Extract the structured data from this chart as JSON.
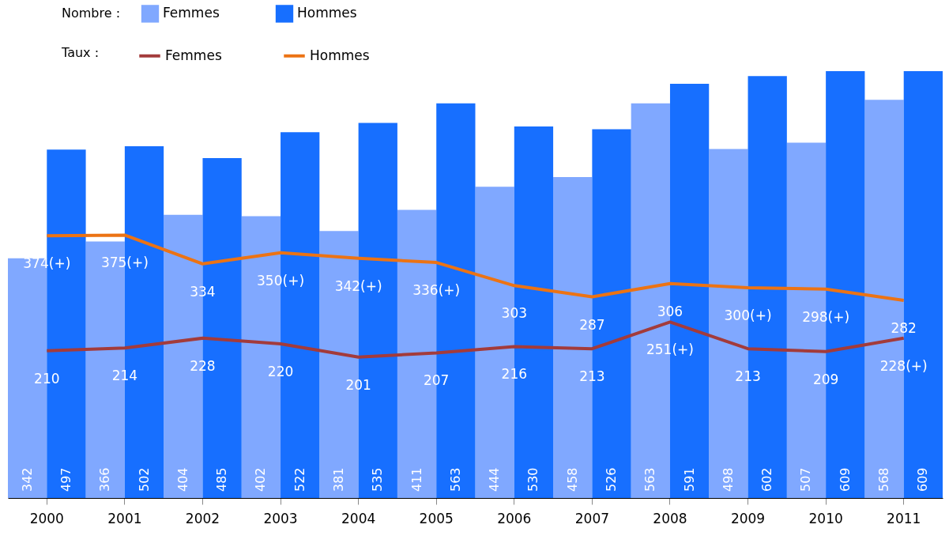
{
  "chart_data": {
    "type": "bar",
    "categories": [
      "2000",
      "2001",
      "2002",
      "2003",
      "2004",
      "2005",
      "2006",
      "2007",
      "2008",
      "2009",
      "2010",
      "2011"
    ],
    "data_labels": true,
    "legend": "top left",
    "annotations": [
      "Nombre :",
      "Taux :"
    ],
    "series": [
      {
        "name": "Femmes",
        "color": "#80a8ff",
        "values": [
          342,
          366,
          404,
          402,
          381,
          411,
          444,
          458,
          563,
          498,
          507,
          568
        ]
      },
      {
        "name": "Hommes",
        "color": "#176fff",
        "values": [
          497,
          502,
          485,
          522,
          535,
          563,
          530,
          526,
          591,
          602,
          609,
          609
        ]
      },
      {
        "name": "Femmes",
        "type": "line",
        "color": "#a33b3b",
        "values": [
          210,
          214,
          228,
          220,
          201,
          207,
          216,
          213,
          251,
          213,
          209,
          228
        ],
        "value_labels": [
          "210",
          "214",
          "228",
          "220",
          "201",
          "207",
          "216",
          "213",
          "251(+)",
          "213",
          "209",
          "228(+)"
        ]
      },
      {
        "name": "Hommes",
        "type": "line",
        "color": "#ec7314",
        "values": [
          374,
          375,
          334,
          350,
          342,
          336,
          303,
          287,
          306,
          300,
          298,
          282
        ],
        "value_labels": [
          "374(+)",
          "375(+)",
          "334",
          "350(+)",
          "342(+)",
          "336(+)",
          "303",
          "287",
          "306",
          "300(+)",
          "298(+)",
          "282"
        ]
      }
    ]
  }
}
